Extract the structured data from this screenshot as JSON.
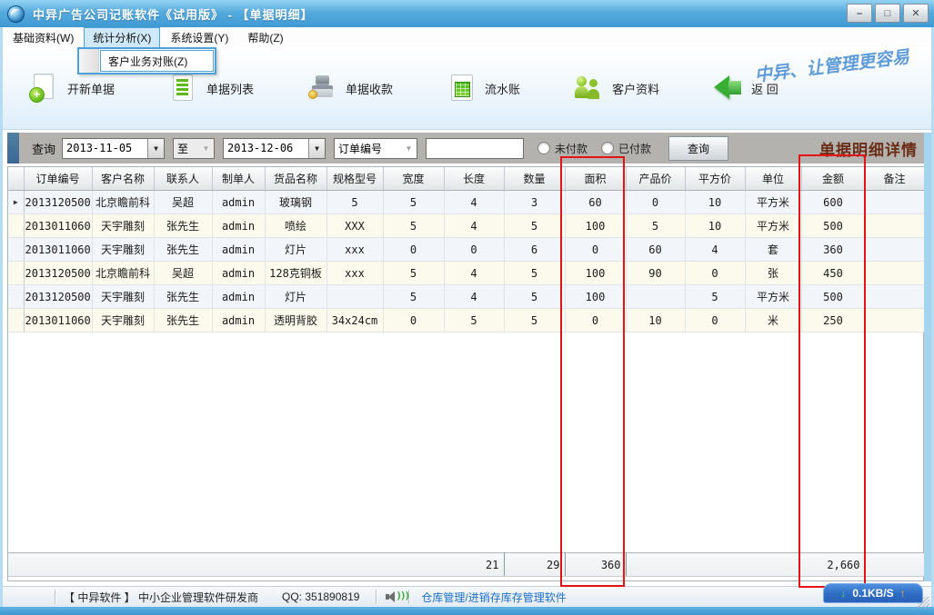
{
  "window": {
    "title": "中异广告公司记账软件《试用版》 - 【单据明细】",
    "minimize_glyph": "–",
    "maximize_glyph": "□",
    "close_glyph": "✕"
  },
  "menu": {
    "items": [
      {
        "label": "基础资料(W)"
      },
      {
        "label": "统计分析(X)"
      },
      {
        "label": "系统设置(Y)"
      },
      {
        "label": "帮助(Z)"
      }
    ],
    "dropdown_items": [
      {
        "label": "客户业务对账(Z)"
      }
    ]
  },
  "toolbar": {
    "buttons": [
      {
        "label": "开新单据",
        "icon": "new-document-icon"
      },
      {
        "label": "单据列表",
        "icon": "document-list-icon"
      },
      {
        "label": "单据收款",
        "icon": "cash-register-icon"
      },
      {
        "label": "流水账",
        "icon": "ledger-icon"
      },
      {
        "label": "客户资料",
        "icon": "customers-icon"
      },
      {
        "label": "返 回",
        "icon": "back-arrow-icon"
      }
    ],
    "slogan": "中异、让管理更容易"
  },
  "filter": {
    "query_label": "查询",
    "date_from": "2013-11-05",
    "to_label": "至",
    "date_to": "2013-12-06",
    "field_selector": "订单编号",
    "keyword_value": "",
    "unpaid_label": "未付款",
    "paid_label": "已付款",
    "search_button": "查询",
    "panel_title": "单据明细详情",
    "dropdown_glyph": "▼"
  },
  "table": {
    "headers": [
      "订单编号",
      "客户名称",
      "联系人",
      "制单人",
      "货品名称",
      "规格型号",
      "宽度",
      "长度",
      "数量",
      "面积",
      "产品价",
      "平方价",
      "单位",
      "金额",
      "备注"
    ],
    "rows": [
      [
        "2013120500",
        "北京瞻前科",
        "吴超",
        "admin",
        "玻璃钢",
        "5",
        "5",
        "4",
        "3",
        "60",
        "0",
        "10",
        "平方米",
        "600",
        ""
      ],
      [
        "2013011060",
        "天宇雕刻",
        "张先生",
        "admin",
        "喷绘",
        "XXX",
        "5",
        "4",
        "5",
        "100",
        "5",
        "10",
        "平方米",
        "500",
        ""
      ],
      [
        "2013011060",
        "天宇雕刻",
        "张先生",
        "admin",
        "灯片",
        "xxx",
        "0",
        "0",
        "6",
        "0",
        "60",
        "4",
        "套",
        "360",
        ""
      ],
      [
        "2013120500",
        "北京瞻前科",
        "吴超",
        "admin",
        "128克铜板",
        "xxx",
        "5",
        "4",
        "5",
        "100",
        "90",
        "0",
        "张",
        "450",
        ""
      ],
      [
        "2013120500",
        "天宇雕刻",
        "张先生",
        "admin",
        "灯片",
        "",
        "5",
        "4",
        "5",
        "100",
        "",
        "5",
        "平方米",
        "500",
        ""
      ],
      [
        "2013011060",
        "天宇雕刻",
        "张先生",
        "admin",
        "透明背胶",
        "34x24cm",
        "0",
        "5",
        "5",
        "0",
        "10",
        "0",
        "米",
        "250",
        ""
      ]
    ],
    "summary": [
      "",
      "",
      "",
      "",
      "",
      "",
      "",
      "21",
      "29",
      "360",
      "",
      "",
      "",
      "2,660",
      ""
    ],
    "row_selector_glyph": "▶"
  },
  "status": {
    "company": "【 中异软件 】 中小企业管理软件研发商",
    "qq": "QQ: 351890819",
    "link": "仓库管理/进销存库存管理软件",
    "net_speed": "0.1KB/S",
    "down_glyph": "↓",
    "up_glyph": "↑",
    "speaker_waves": ")))"
  },
  "colors": {
    "accent_blue": "#4da0d8",
    "highlight_red": "#e41414",
    "panel_title_maroon": "#6b2d18",
    "link_blue": "#1b6fc8",
    "badge_blue": "#2e6cc4"
  }
}
